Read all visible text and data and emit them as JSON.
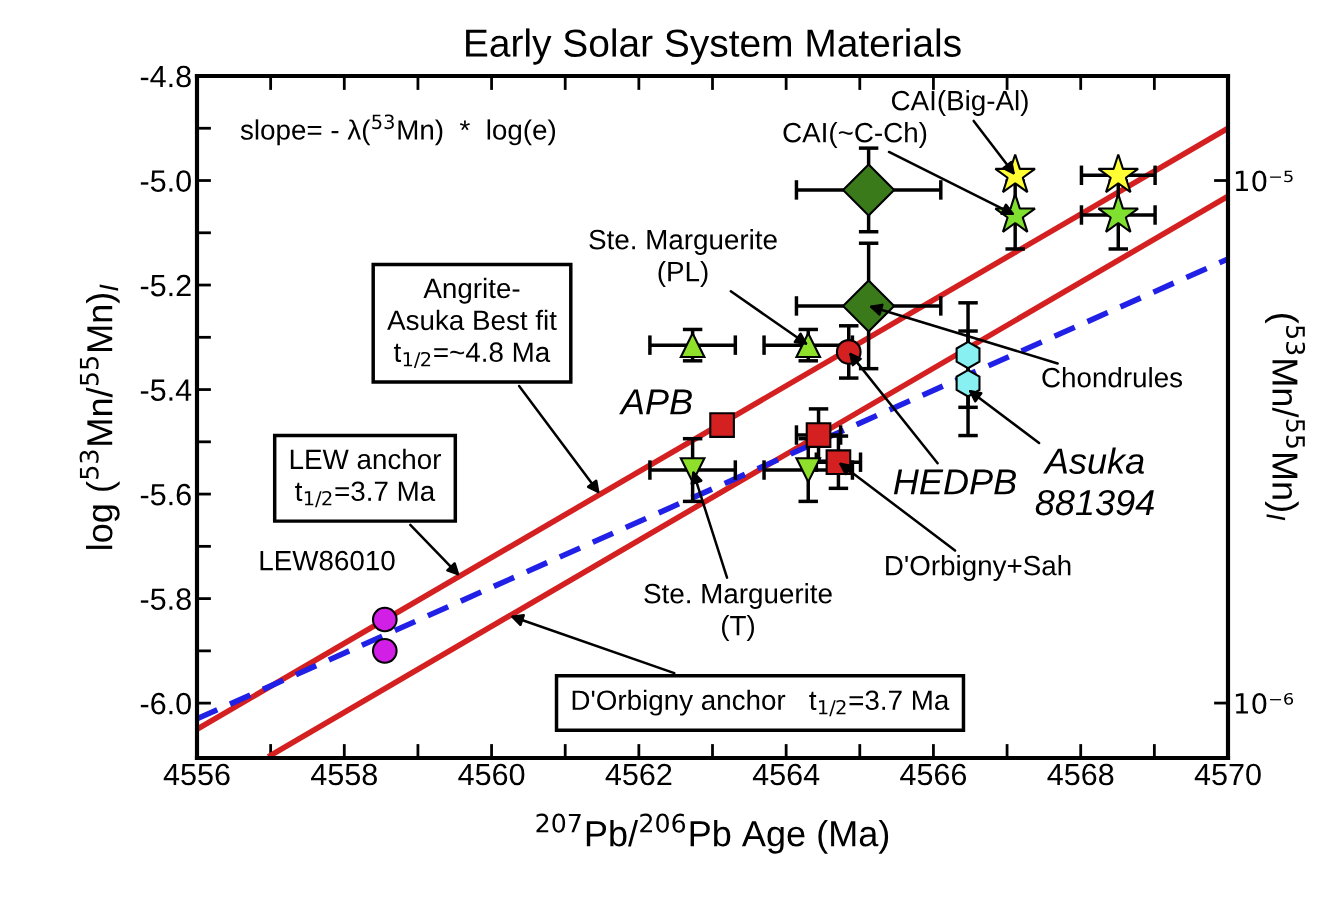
{
  "chart_data": {
    "type": "scatter",
    "title": "Early Solar System Materials",
    "xlabel": "$^{207}$Pb/$^{206}$Pb Age (Ma)",
    "ylabel": "log ($^{53}$Mn/$^{55}$Mn)$_{I}$",
    "y2label": "($^{53}$Mn/$^{55}$Mn)$_{I}$",
    "xlim": [
      4556,
      4570
    ],
    "ylim": [
      -6.105,
      -4.8
    ],
    "log": "y2",
    "y2lim": [
      7.85e-07,
      1.585e-05
    ],
    "xticks": [
      4556,
      {
        "value": 4557,
        "label": null
      },
      4558,
      {
        "value": 4559,
        "label": null
      },
      4560,
      {
        "value": 4561,
        "label": null
      },
      4562,
      {
        "value": 4563,
        "label": null
      },
      4564,
      {
        "value": 4565,
        "label": null
      },
      4566,
      {
        "value": 4567,
        "label": null
      },
      4568,
      {
        "value": 4569,
        "label": null
      },
      4570
    ],
    "yticks": [
      -4.8,
      {
        "value": -4.9,
        "label": null
      },
      {
        "value": -5.0,
        "label": "-5.0"
      },
      {
        "value": -5.1,
        "label": null
      },
      -5.2,
      {
        "value": -5.3,
        "label": null
      },
      -5.4,
      {
        "value": -5.5,
        "label": null
      },
      -5.6,
      {
        "value": -5.7,
        "label": null
      },
      -5.8,
      {
        "value": -5.9,
        "label": null
      },
      {
        "value": -6.0,
        "label": "-6.0"
      }
    ],
    "y2ticks": [
      {
        "value": 1e-05,
        "label": "10⁻⁵"
      },
      {
        "value": 1e-06,
        "label": "10⁻⁶"
      }
    ],
    "grid": false,
    "series": [
      {
        "marker": "circle",
        "color": "#d21fe6",
        "x": [
          4558.55,
          4558.55
        ],
        "values": [
          -5.84,
          -5.9
        ]
      },
      {
        "marker": "triangle",
        "color": "#8ee02a",
        "x": [
          4562.73,
          4564.3
        ],
        "values": [
          -5.315,
          -5.315
        ],
        "xerrors": [
          0.58,
          0.6
        ],
        "errors": [
          0.03,
          0.03
        ]
      },
      {
        "marker": "triangle_down",
        "color": "#8ee02a",
        "x": [
          4562.73,
          4564.3
        ],
        "values": [
          -5.554,
          -5.554
        ],
        "xerrors": [
          0.58,
          0.6
        ],
        "errors": [
          0.06,
          0.06
        ]
      },
      {
        "marker": "square",
        "color": "#d42020",
        "x": [
          4563.13
        ],
        "values": [
          -5.468
        ]
      },
      {
        "marker": "circle",
        "color": "#d42020",
        "x": [
          4564.85
        ],
        "values": [
          -5.328
        ],
        "errors": [
          0.05
        ]
      },
      {
        "marker": "square",
        "color": "#d42020",
        "x": [
          4564.44,
          4564.71
        ],
        "values": [
          -5.487,
          -5.539
        ],
        "xerrors": [
          0.3,
          0.3
        ],
        "errors": [
          0.05,
          0.05
        ]
      },
      {
        "marker": "diamond",
        "color": "#3a7a1a",
        "x": [
          4565.12,
          4565.12
        ],
        "values": [
          -5.018,
          -5.24
        ],
        "xerrors": [
          0.98,
          0.98
        ],
        "errors": [
          0.08,
          0.12
        ]
      },
      {
        "marker": "star",
        "color": "#7fe030",
        "x": [
          4567.11,
          4568.51
        ],
        "values": [
          -5.066,
          -5.066
        ],
        "xerrors": [
          null,
          0.5
        ],
        "errors": [
          0.065,
          0.065
        ]
      },
      {
        "marker": "star",
        "color": "#ffff33",
        "x": [
          4567.11,
          4568.51
        ],
        "values": [
          -4.99,
          -4.99
        ],
        "xerrors": [
          null,
          0.5
        ]
      },
      {
        "color": "#88f0f0",
        "x": [
          4566.47,
          4566.47
        ],
        "values": [
          -5.334,
          -5.388
        ],
        "errors": [
          0.1,
          0.1
        ]
      },
      {
        "type": "line",
        "line_style": "solid",
        "color": "#d42020",
        "x": [
          4556,
          4570
        ],
        "values": [
          -6.05,
          -4.9
        ]
      },
      {
        "type": "line",
        "line_style": "solid",
        "color": "#d42020",
        "x": [
          4557.0,
          4570
        ],
        "values": [
          -6.1,
          -5.03
        ]
      },
      {
        "type": "line",
        "line_style": "dashed",
        "color": "#2020e6",
        "x": [
          4556,
          4570
        ],
        "values": [
          -6.03,
          -5.15
        ]
      }
    ],
    "annotations": [
      "slope= - λ($^{53}$Mn)  *  log(e)",
      {
        "text": "CAI(Big-Al)",
        "x": 4567.11,
        "y": -4.99
      },
      {
        "text": "CAI(~C-Ch)",
        "x": 4567.11,
        "y": -5.066
      },
      {
        "text": "Ste. Marguerite\n(PL)",
        "x": 4564.3,
        "y": -5.315
      },
      {
        "text": "Angrite-\nAsuka Best fit\nt$_{1/2}$=~4.8 Ma",
        "x": 4561.47,
        "y": -5.6
      },
      {
        "text": "APB",
        "x": 4563.13,
        "y": -5.468
      },
      {
        "text": "HEDPB",
        "x": 4564.85,
        "y": -5.328
      },
      {
        "text": "Chondrules",
        "x": 4565.12,
        "y": -5.24
      },
      {
        "text": "Asuka\n881394",
        "x": 4566.47,
        "y": -5.4
      },
      {
        "text": "D'Orbigny+Sah",
        "x": 4564.71,
        "y": -5.539
      },
      {
        "text": "Ste. Marguerite\n(T)",
        "x": 4562.73,
        "y": -5.554
      },
      {
        "text": "LEW anchor\nt$_{1/2}$=3.7 Ma",
        "x": 4559.57,
        "y": -5.757
      },
      {
        "text": "LEW86010",
        "x": 4558.55,
        "y": -5.84
      },
      {
        "text": "D'Orbigny anchor   t$_{1/2}$=3.7 Ma",
        "x": 4560.25,
        "y": -5.833
      }
    ]
  }
}
